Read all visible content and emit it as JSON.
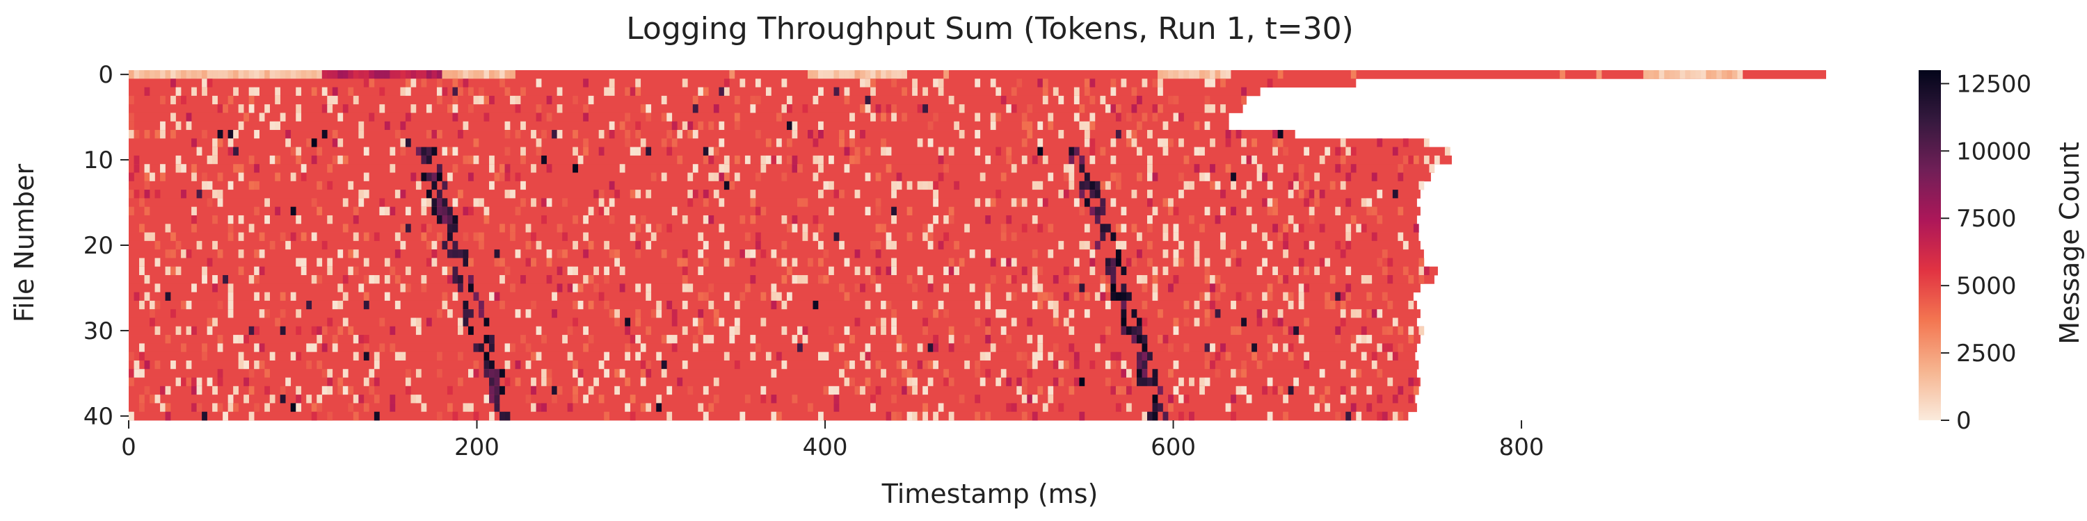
{
  "chart_data": {
    "type": "heatmap",
    "title": "Logging Throughput Sum (Tokens, Run 1, t=30)",
    "xlabel": "Timestamp (ms)",
    "ylabel": "File Number",
    "colorbar_label": "Message Count",
    "xlim": [
      0,
      975
    ],
    "ylim": [
      41,
      0
    ],
    "x_ticks": [
      0,
      200,
      400,
      600,
      800
    ],
    "y_ticks": [
      0,
      10,
      20,
      30,
      40
    ],
    "colorbar_range": [
      0,
      13000
    ],
    "colorbar_ticks": [
      0,
      2500,
      5000,
      7500,
      10000,
      12500
    ],
    "colormap": "rocket_r",
    "colormap_stops": [
      "#faebdd",
      "#f6b48f",
      "#f37651",
      "#e13342",
      "#ad1759",
      "#701f57",
      "#35193e",
      "#03051a"
    ],
    "rows": 41,
    "typical_value": 5000,
    "row_extents_ms": [
      [
        0,
        975
      ],
      [
        0,
        705
      ],
      [
        0,
        650
      ],
      [
        0,
        642
      ],
      [
        0,
        640
      ],
      [
        0,
        632
      ],
      [
        0,
        632
      ],
      [
        0,
        670
      ],
      [
        0,
        745
      ],
      [
        0,
        758
      ],
      [
        0,
        760
      ],
      [
        0,
        750
      ],
      [
        0,
        748
      ],
      [
        0,
        744
      ],
      [
        0,
        742
      ],
      [
        0,
        740
      ],
      [
        0,
        742
      ],
      [
        0,
        740
      ],
      [
        0,
        739
      ],
      [
        0,
        741
      ],
      [
        0,
        742
      ],
      [
        0,
        744
      ],
      [
        0,
        742
      ],
      [
        0,
        752
      ],
      [
        0,
        750
      ],
      [
        0,
        742
      ],
      [
        0,
        738
      ],
      [
        0,
        740
      ],
      [
        0,
        742
      ],
      [
        0,
        740
      ],
      [
        0,
        744
      ],
      [
        0,
        742
      ],
      [
        0,
        740
      ],
      [
        0,
        739
      ],
      [
        0,
        741
      ],
      [
        0,
        740
      ],
      [
        0,
        742
      ],
      [
        0,
        740
      ],
      [
        0,
        739
      ],
      [
        0,
        740
      ],
      [
        0,
        735
      ]
    ],
    "low_value_segments_row0_ms": [
      [
        0,
        110
      ],
      [
        178,
        220
      ],
      [
        390,
        445
      ],
      [
        590,
        632
      ],
      [
        870,
        925
      ]
    ],
    "high_value_diagonals": [
      {
        "from": [
          170,
          10
        ],
        "to": [
          215,
          40
        ]
      },
      {
        "from": [
          545,
          10
        ],
        "to": [
          590,
          40
        ]
      }
    ]
  }
}
